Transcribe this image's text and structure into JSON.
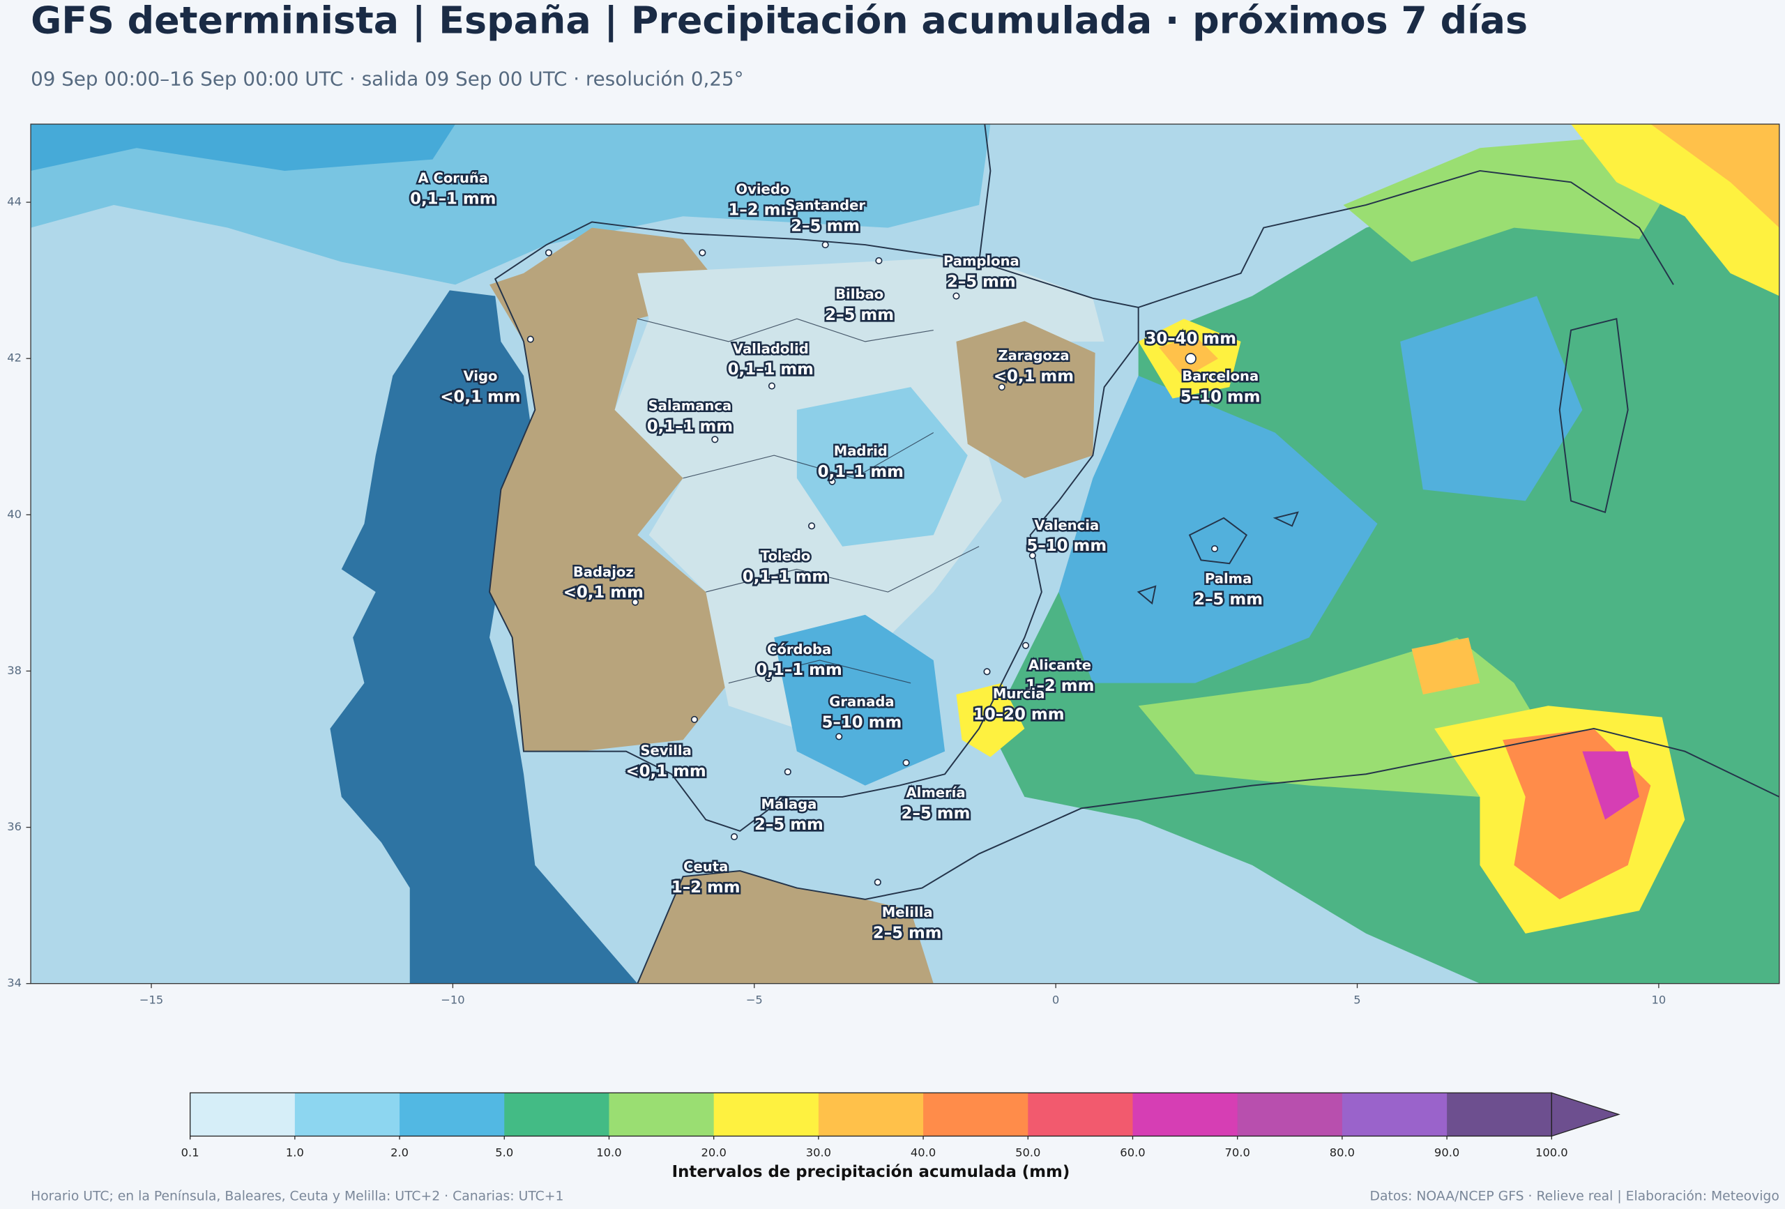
{
  "header": {
    "title": "GFS determinista | España | Precipitación acumulada · próximos 7 días",
    "subtitle": "09 Sep 00:00–16 Sep 00:00 UTC · salida 09 Sep 00 UTC · resolución 0,25°"
  },
  "chart_data": {
    "type": "map",
    "xlim": [
      -17,
      12
    ],
    "ylim": [
      34,
      45
    ],
    "xticks": [
      {
        "value": -15,
        "label": "−15"
      },
      {
        "value": -10,
        "label": "−10"
      },
      {
        "value": -5,
        "label": "−5"
      },
      0,
      5,
      10
    ],
    "yticks": [
      34,
      36,
      38,
      40,
      42,
      44
    ],
    "cities": [
      {
        "name": "A Coruña",
        "label": "0,1–1 mm"
      },
      {
        "name": "Oviedo",
        "label": "1–2 mm"
      },
      {
        "name": "Santander",
        "label": "2–5 mm"
      },
      {
        "name": "Pamplona",
        "label": "2–5 mm"
      },
      {
        "name": "Bilbao",
        "label": "2–5 mm"
      },
      {
        "name": "Barcelona",
        "label": "5–10 mm"
      },
      {
        "name": "Zaragoza",
        "label": "<0,1 mm"
      },
      {
        "name": "Vigo",
        "label": "<0,1 mm"
      },
      {
        "name": "Valladolid",
        "label": "0,1–1 mm"
      },
      {
        "name": "Salamanca",
        "label": "0,1–1 mm"
      },
      {
        "name": "Madrid",
        "label": "0,1–1 mm"
      },
      {
        "name": "Valencia",
        "label": "5–10 mm"
      },
      {
        "name": "Toledo",
        "label": "0,1–1 mm"
      },
      {
        "name": "Badajoz",
        "label": "<0,1 mm"
      },
      {
        "name": "Palma",
        "label": "2–5 mm"
      },
      {
        "name": "Córdoba",
        "label": "0,1–1 mm"
      },
      {
        "name": "Alicante",
        "label": "1–2 mm"
      },
      {
        "name": "Granada",
        "label": "5–10 mm"
      },
      {
        "name": "Murcia",
        "label": "10–20 mm"
      },
      {
        "name": "Sevilla",
        "label": "<0,1 mm"
      },
      {
        "name": "Almería",
        "label": "2–5 mm"
      },
      {
        "name": "Málaga",
        "label": "2–5 mm"
      },
      {
        "name": "Ceuta",
        "label": "1–2 mm"
      },
      {
        "name": "Melilla",
        "label": "2–5 mm"
      }
    ],
    "max_label": "30–40 mm"
  },
  "colorbar": {
    "levels": [
      0.1,
      {
        "value": 1,
        "label": "1.0"
      },
      {
        "value": 2,
        "label": "2.0"
      },
      {
        "value": 5,
        "label": "5.0"
      },
      {
        "value": 10,
        "label": "10.0"
      },
      {
        "value": 20,
        "label": "20.0"
      },
      {
        "value": 30,
        "label": "30.0"
      },
      {
        "value": 40,
        "label": "40.0"
      },
      {
        "value": 50,
        "label": "50.0"
      },
      {
        "value": 60,
        "label": "60.0"
      },
      {
        "value": 70,
        "label": "70.0"
      },
      {
        "value": 80,
        "label": "80.0"
      },
      {
        "value": 90,
        "label": "90.0"
      },
      {
        "value": 100,
        "label": "100.0"
      }
    ],
    "colors": [
      "#d6eef8",
      "#8dd6f0",
      "#52b8e3",
      "#43bb85",
      "#9ade72",
      "#fef140",
      "#ffc14a",
      "#ff8c4a",
      "#f25a6e",
      "#d63eb4",
      "#b84fae",
      "#9a63cb",
      "#6d4f8f"
    ],
    "extend": "max",
    "label": "Intervalos de precipitación acumulada (mm)"
  },
  "footer": {
    "left": "Horario UTC; en la Península, Baleares, Ceuta y Melilla: UTC+2 · Canarias: UTC+1",
    "right": "Datos: NOAA/NCEP GFS · Relieve real | Elaboración: Meteovigo"
  }
}
